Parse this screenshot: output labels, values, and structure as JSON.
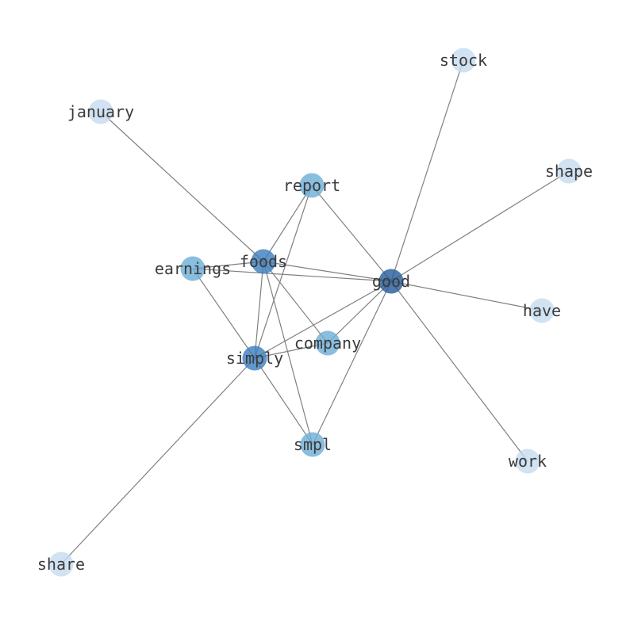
{
  "diagram": {
    "type": "network-graph",
    "edge_color": "#808080",
    "nodes": [
      {
        "id": "stock",
        "label": "stock",
        "color": "#c6dbef"
      },
      {
        "id": "january",
        "label": "january",
        "color": "#c6dbef"
      },
      {
        "id": "shape",
        "label": "shape",
        "color": "#c6dbef"
      },
      {
        "id": "report",
        "label": "report",
        "color": "#6baed6"
      },
      {
        "id": "foods",
        "label": "foods",
        "color": "#3a7dbd"
      },
      {
        "id": "earnings",
        "label": "earnings",
        "color": "#6baed6"
      },
      {
        "id": "good",
        "label": "good",
        "color": "#235a9a"
      },
      {
        "id": "have",
        "label": "have",
        "color": "#c6dbef"
      },
      {
        "id": "company",
        "label": "company",
        "color": "#6baed6"
      },
      {
        "id": "simply",
        "label": "simply",
        "color": "#3a7dbd"
      },
      {
        "id": "smpl",
        "label": "smpl",
        "color": "#6baed6"
      },
      {
        "id": "work",
        "label": "work",
        "color": "#c6dbef"
      },
      {
        "id": "share",
        "label": "share",
        "color": "#c6dbef"
      }
    ],
    "edges": [
      [
        "stock",
        "good"
      ],
      [
        "january",
        "foods"
      ],
      [
        "shape",
        "good"
      ],
      [
        "report",
        "foods"
      ],
      [
        "report",
        "good"
      ],
      [
        "report",
        "simply"
      ],
      [
        "foods",
        "good"
      ],
      [
        "foods",
        "company"
      ],
      [
        "foods",
        "simply"
      ],
      [
        "foods",
        "smpl"
      ],
      [
        "foods",
        "earnings"
      ],
      [
        "earnings",
        "good"
      ],
      [
        "earnings",
        "simply"
      ],
      [
        "good",
        "have"
      ],
      [
        "good",
        "work"
      ],
      [
        "good",
        "simply"
      ],
      [
        "good",
        "company"
      ],
      [
        "good",
        "smpl"
      ],
      [
        "simply",
        "company"
      ],
      [
        "simply",
        "smpl"
      ],
      [
        "simply",
        "share"
      ]
    ]
  }
}
